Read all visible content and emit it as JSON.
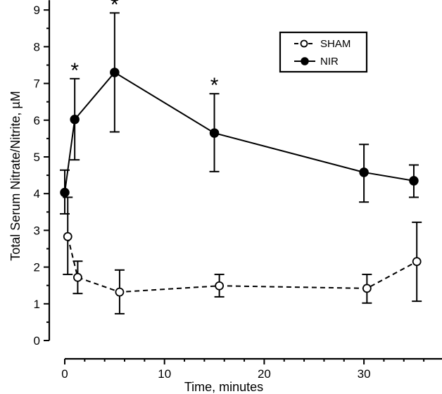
{
  "chart_data": {
    "type": "line",
    "title": "",
    "xlabel": "Time, minutes",
    "ylabel": "Total Serum Nitrate/Nitrite, µM",
    "xlim": [
      0,
      40
    ],
    "ylim": [
      0,
      9
    ],
    "x_ticks": [
      0,
      10,
      20,
      30
    ],
    "x_tick_labels": [
      "0",
      "10",
      "20",
      "30"
    ],
    "x_minor_step": 2,
    "y_ticks": [
      0,
      1,
      2,
      3,
      4,
      5,
      6,
      7,
      8,
      9
    ],
    "y_tick_labels": [
      "0",
      "1",
      "2",
      "3",
      "4",
      "5",
      "6",
      "7",
      "8",
      "9"
    ],
    "y_minor_step": 0.5,
    "grid": false,
    "legend_position": "top-right",
    "series": [
      {
        "name": "SHAM",
        "style": "dashed",
        "marker": "open-circle",
        "x": [
          0.3,
          1.3,
          5.5,
          15.5,
          30.3,
          35.3
        ],
        "values": [
          2.83,
          1.72,
          1.32,
          1.49,
          1.42,
          2.15
        ],
        "err_upper": [
          3.9,
          2.16,
          1.92,
          1.8,
          1.8,
          3.22
        ],
        "err_lower": [
          1.8,
          1.28,
          0.73,
          1.19,
          1.02,
          1.07
        ]
      },
      {
        "name": "NIR",
        "style": "solid",
        "marker": "filled-circle",
        "x": [
          0.0,
          1.0,
          5.0,
          15.0,
          30.0,
          35.0
        ],
        "values": [
          4.03,
          6.02,
          7.3,
          5.65,
          4.58,
          4.35
        ],
        "err_upper": [
          4.64,
          7.13,
          8.92,
          6.72,
          5.34,
          4.78
        ],
        "err_lower": [
          3.45,
          4.92,
          5.68,
          4.6,
          3.77,
          3.9
        ]
      }
    ],
    "annotations": [
      {
        "text": "*",
        "series": "NIR",
        "index": 1
      },
      {
        "text": "*",
        "series": "NIR",
        "index": 2
      },
      {
        "text": "*",
        "series": "NIR",
        "index": 3
      }
    ]
  },
  "legend": {
    "items": [
      {
        "label": "SHAM",
        "icon": "dashed-line-open-circle-icon"
      },
      {
        "label": "NIR",
        "icon": "solid-line-filled-circle-icon"
      }
    ]
  }
}
